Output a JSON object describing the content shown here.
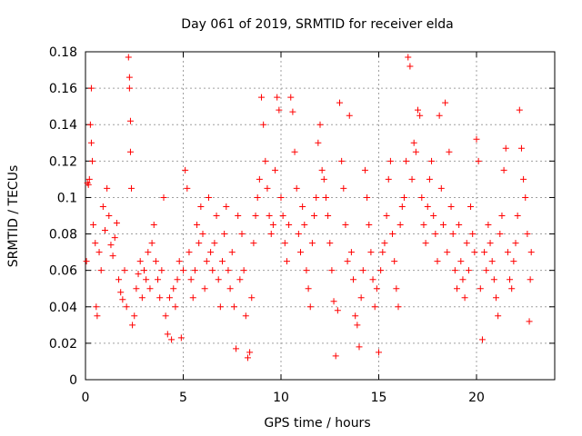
{
  "chart_data": {
    "type": "scatter",
    "title": "Day 061 of 2019, SRMTID for receiver elda",
    "xlabel": "GPS time / hours",
    "ylabel": "SRMTID / TECUs",
    "xlim": [
      0,
      24
    ],
    "ylim": [
      0,
      0.18
    ],
    "xticks": [
      0,
      5,
      10,
      15,
      20
    ],
    "xtick_labels": [
      "0",
      "5",
      "10",
      "15",
      "20"
    ],
    "yticks": [
      0,
      0.02,
      0.04,
      0.06,
      0.08,
      0.1,
      0.12,
      0.14,
      0.16,
      0.18
    ],
    "ytick_labels": [
      "0",
      "0.02",
      "0.04",
      "0.06",
      "0.08",
      "0.1",
      "0.12",
      "0.14",
      "0.16",
      "0.18"
    ],
    "grid": true,
    "marker": "+",
    "color": "#ff0000",
    "series": [
      {
        "name": "SRMTID",
        "points": [
          [
            0.05,
            0.065
          ],
          [
            0.1,
            0.108
          ],
          [
            0.15,
            0.107
          ],
          [
            0.2,
            0.11
          ],
          [
            0.25,
            0.14
          ],
          [
            0.3,
            0.16
          ],
          [
            0.3,
            0.13
          ],
          [
            0.35,
            0.12
          ],
          [
            0.4,
            0.085
          ],
          [
            0.5,
            0.075
          ],
          [
            0.55,
            0.04
          ],
          [
            0.6,
            0.035
          ],
          [
            0.7,
            0.07
          ],
          [
            0.8,
            0.06
          ],
          [
            0.9,
            0.095
          ],
          [
            1.0,
            0.082
          ],
          [
            1.1,
            0.105
          ],
          [
            1.2,
            0.09
          ],
          [
            1.3,
            0.074
          ],
          [
            1.4,
            0.068
          ],
          [
            1.5,
            0.078
          ],
          [
            1.6,
            0.086
          ],
          [
            1.7,
            0.055
          ],
          [
            1.8,
            0.048
          ],
          [
            1.9,
            0.044
          ],
          [
            2.0,
            0.06
          ],
          [
            2.1,
            0.04
          ],
          [
            2.2,
            0.177
          ],
          [
            2.25,
            0.166
          ],
          [
            2.25,
            0.16
          ],
          [
            2.3,
            0.142
          ],
          [
            2.3,
            0.125
          ],
          [
            2.35,
            0.105
          ],
          [
            2.4,
            0.03
          ],
          [
            2.5,
            0.035
          ],
          [
            2.6,
            0.05
          ],
          [
            2.7,
            0.058
          ],
          [
            2.8,
            0.065
          ],
          [
            2.9,
            0.045
          ],
          [
            3.0,
            0.06
          ],
          [
            3.1,
            0.055
          ],
          [
            3.2,
            0.07
          ],
          [
            3.3,
            0.05
          ],
          [
            3.4,
            0.075
          ],
          [
            3.5,
            0.085
          ],
          [
            3.6,
            0.065
          ],
          [
            3.7,
            0.055
          ],
          [
            3.8,
            0.045
          ],
          [
            3.9,
            0.06
          ],
          [
            4.0,
            0.1
          ],
          [
            4.1,
            0.035
          ],
          [
            4.2,
            0.025
          ],
          [
            4.3,
            0.045
          ],
          [
            4.4,
            0.022
          ],
          [
            4.5,
            0.05
          ],
          [
            4.6,
            0.04
          ],
          [
            4.7,
            0.055
          ],
          [
            4.8,
            0.065
          ],
          [
            4.9,
            0.023
          ],
          [
            5.0,
            0.06
          ],
          [
            5.1,
            0.115
          ],
          [
            5.2,
            0.105
          ],
          [
            5.3,
            0.07
          ],
          [
            5.4,
            0.055
          ],
          [
            5.5,
            0.045
          ],
          [
            5.6,
            0.06
          ],
          [
            5.7,
            0.085
          ],
          [
            5.8,
            0.075
          ],
          [
            5.9,
            0.095
          ],
          [
            6.0,
            0.08
          ],
          [
            6.1,
            0.05
          ],
          [
            6.2,
            0.065
          ],
          [
            6.3,
            0.1
          ],
          [
            6.4,
            0.07
          ],
          [
            6.5,
            0.06
          ],
          [
            6.6,
            0.075
          ],
          [
            6.7,
            0.09
          ],
          [
            6.8,
            0.055
          ],
          [
            6.9,
            0.04
          ],
          [
            7.0,
            0.065
          ],
          [
            7.1,
            0.08
          ],
          [
            7.2,
            0.095
          ],
          [
            7.3,
            0.06
          ],
          [
            7.4,
            0.05
          ],
          [
            7.5,
            0.07
          ],
          [
            7.6,
            0.04
          ],
          [
            7.7,
            0.017
          ],
          [
            7.8,
            0.09
          ],
          [
            7.9,
            0.055
          ],
          [
            8.0,
            0.08
          ],
          [
            8.1,
            0.06
          ],
          [
            8.2,
            0.035
          ],
          [
            8.3,
            0.012
          ],
          [
            8.4,
            0.015
          ],
          [
            8.5,
            0.045
          ],
          [
            8.6,
            0.075
          ],
          [
            8.7,
            0.09
          ],
          [
            8.8,
            0.1
          ],
          [
            8.9,
            0.11
          ],
          [
            9.0,
            0.155
          ],
          [
            9.1,
            0.14
          ],
          [
            9.2,
            0.12
          ],
          [
            9.3,
            0.105
          ],
          [
            9.4,
            0.09
          ],
          [
            9.5,
            0.08
          ],
          [
            9.6,
            0.085
          ],
          [
            9.7,
            0.115
          ],
          [
            9.8,
            0.155
          ],
          [
            9.9,
            0.148
          ],
          [
            10.0,
            0.1
          ],
          [
            10.1,
            0.09
          ],
          [
            10.2,
            0.075
          ],
          [
            10.3,
            0.065
          ],
          [
            10.4,
            0.085
          ],
          [
            10.5,
            0.155
          ],
          [
            10.6,
            0.147
          ],
          [
            10.7,
            0.125
          ],
          [
            10.8,
            0.105
          ],
          [
            10.9,
            0.08
          ],
          [
            11.0,
            0.07
          ],
          [
            11.1,
            0.095
          ],
          [
            11.2,
            0.085
          ],
          [
            11.3,
            0.06
          ],
          [
            11.4,
            0.05
          ],
          [
            11.5,
            0.04
          ],
          [
            11.6,
            0.075
          ],
          [
            11.7,
            0.09
          ],
          [
            11.8,
            0.1
          ],
          [
            11.9,
            0.13
          ],
          [
            12.0,
            0.14
          ],
          [
            12.1,
            0.115
          ],
          [
            12.2,
            0.11
          ],
          [
            12.3,
            0.1
          ],
          [
            12.4,
            0.09
          ],
          [
            12.5,
            0.075
          ],
          [
            12.6,
            0.06
          ],
          [
            12.7,
            0.043
          ],
          [
            12.8,
            0.013
          ],
          [
            12.9,
            0.038
          ],
          [
            13.0,
            0.152
          ],
          [
            13.1,
            0.12
          ],
          [
            13.2,
            0.105
          ],
          [
            13.3,
            0.085
          ],
          [
            13.4,
            0.065
          ],
          [
            13.5,
            0.145
          ],
          [
            13.6,
            0.07
          ],
          [
            13.7,
            0.055
          ],
          [
            13.8,
            0.035
          ],
          [
            13.9,
            0.03
          ],
          [
            14.0,
            0.018
          ],
          [
            14.1,
            0.045
          ],
          [
            14.2,
            0.06
          ],
          [
            14.3,
            0.115
          ],
          [
            14.4,
            0.1
          ],
          [
            14.5,
            0.085
          ],
          [
            14.6,
            0.07
          ],
          [
            14.7,
            0.055
          ],
          [
            14.8,
            0.04
          ],
          [
            14.9,
            0.05
          ],
          [
            15.0,
            0.015
          ],
          [
            15.1,
            0.06
          ],
          [
            15.2,
            0.07
          ],
          [
            15.3,
            0.075
          ],
          [
            15.4,
            0.09
          ],
          [
            15.5,
            0.11
          ],
          [
            15.6,
            0.12
          ],
          [
            15.7,
            0.08
          ],
          [
            15.8,
            0.065
          ],
          [
            15.9,
            0.05
          ],
          [
            16.0,
            0.04
          ],
          [
            16.1,
            0.085
          ],
          [
            16.2,
            0.095
          ],
          [
            16.3,
            0.1
          ],
          [
            16.4,
            0.12
          ],
          [
            16.5,
            0.177
          ],
          [
            16.6,
            0.172
          ],
          [
            16.7,
            0.11
          ],
          [
            16.8,
            0.13
          ],
          [
            16.9,
            0.125
          ],
          [
            17.0,
            0.148
          ],
          [
            17.1,
            0.145
          ],
          [
            17.2,
            0.1
          ],
          [
            17.3,
            0.085
          ],
          [
            17.4,
            0.075
          ],
          [
            17.5,
            0.095
          ],
          [
            17.6,
            0.11
          ],
          [
            17.7,
            0.12
          ],
          [
            17.8,
            0.09
          ],
          [
            17.9,
            0.08
          ],
          [
            18.0,
            0.065
          ],
          [
            18.1,
            0.145
          ],
          [
            18.2,
            0.105
          ],
          [
            18.3,
            0.085
          ],
          [
            18.4,
            0.152
          ],
          [
            18.5,
            0.07
          ],
          [
            18.6,
            0.125
          ],
          [
            18.7,
            0.095
          ],
          [
            18.8,
            0.08
          ],
          [
            18.9,
            0.06
          ],
          [
            19.0,
            0.05
          ],
          [
            19.1,
            0.085
          ],
          [
            19.2,
            0.065
          ],
          [
            19.3,
            0.055
          ],
          [
            19.4,
            0.045
          ],
          [
            19.5,
            0.075
          ],
          [
            19.6,
            0.06
          ],
          [
            19.7,
            0.095
          ],
          [
            19.8,
            0.08
          ],
          [
            19.9,
            0.07
          ],
          [
            20.0,
            0.132
          ],
          [
            20.1,
            0.12
          ],
          [
            20.2,
            0.05
          ],
          [
            20.3,
            0.022
          ],
          [
            20.4,
            0.07
          ],
          [
            20.5,
            0.06
          ],
          [
            20.6,
            0.085
          ],
          [
            20.7,
            0.075
          ],
          [
            20.8,
            0.065
          ],
          [
            20.9,
            0.055
          ],
          [
            21.0,
            0.045
          ],
          [
            21.1,
            0.035
          ],
          [
            21.2,
            0.08
          ],
          [
            21.3,
            0.09
          ],
          [
            21.4,
            0.115
          ],
          [
            21.5,
            0.127
          ],
          [
            21.6,
            0.07
          ],
          [
            21.7,
            0.055
          ],
          [
            21.8,
            0.05
          ],
          [
            21.9,
            0.065
          ],
          [
            22.0,
            0.075
          ],
          [
            22.1,
            0.09
          ],
          [
            22.2,
            0.148
          ],
          [
            22.3,
            0.127
          ],
          [
            22.4,
            0.11
          ],
          [
            22.5,
            0.1
          ],
          [
            22.6,
            0.08
          ],
          [
            22.7,
            0.032
          ],
          [
            22.75,
            0.055
          ],
          [
            22.8,
            0.07
          ]
        ]
      }
    ]
  }
}
